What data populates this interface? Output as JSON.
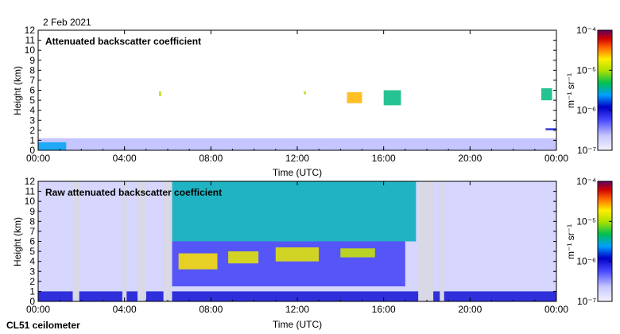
{
  "header": {
    "date": "2 Feb 2021"
  },
  "footer": {
    "instrument": "CL51 ceilometer"
  },
  "chart_data": [
    {
      "type": "heatmap",
      "title": "Attenuated backscatter coefficient",
      "xlabel": "Time (UTC)",
      "ylabel": "Height (km)",
      "x_ticks": [
        "00:00",
        "04:00",
        "08:00",
        "12:00",
        "16:00",
        "20:00",
        "00:00"
      ],
      "y_ticks": [
        "0",
        "1",
        "2",
        "3",
        "4",
        "5",
        "6",
        "7",
        "8",
        "9",
        "10",
        "11",
        "12"
      ],
      "xlim_hours": [
        0,
        24
      ],
      "ylim_km": [
        0,
        12
      ],
      "colorbar": {
        "label": "m⁻¹ sr⁻¹",
        "ticks": [
          "10⁻⁷",
          "10⁻⁶",
          "10⁻⁵",
          "10⁻⁴"
        ],
        "log_range": [
          -7,
          -4
        ]
      },
      "features": [
        {
          "name": "boundary layer",
          "t0": 0.0,
          "t1": 24.0,
          "h0": 0.0,
          "h1": 1.2,
          "level": -6.6
        },
        {
          "name": "surface layer",
          "t0": 0.0,
          "t1": 1.3,
          "h0": 0.0,
          "h1": 0.8,
          "level": -5.6
        },
        {
          "name": "cloud",
          "t0": 5.6,
          "t1": 5.7,
          "h0": 5.4,
          "h1": 5.9,
          "level": -5.0
        },
        {
          "name": "cloud",
          "t0": 12.3,
          "t1": 12.4,
          "h0": 5.6,
          "h1": 5.9,
          "level": -5.0
        },
        {
          "name": "cloud",
          "t0": 14.3,
          "t1": 15.0,
          "h0": 4.7,
          "h1": 5.8,
          "level": -4.6
        },
        {
          "name": "cloud",
          "t0": 16.0,
          "t1": 16.8,
          "h0": 4.5,
          "h1": 6.0,
          "level": -5.4
        },
        {
          "name": "cloud",
          "t0": 23.3,
          "t1": 23.8,
          "h0": 5.0,
          "h1": 6.2,
          "level": -5.4
        },
        {
          "name": "aerosol",
          "t0": 23.5,
          "t1": 24.0,
          "h0": 2.0,
          "h1": 2.2,
          "level": -6.0
        }
      ]
    },
    {
      "type": "heatmap",
      "title": "Raw attenuated backscatter coefficient",
      "xlabel": "Time (UTC)",
      "ylabel": "Height (km)",
      "x_ticks": [
        "00:00",
        "04:00",
        "08:00",
        "12:00",
        "16:00",
        "20:00",
        "00:00"
      ],
      "y_ticks": [
        "0",
        "1",
        "2",
        "3",
        "4",
        "5",
        "6",
        "7",
        "8",
        "9",
        "10",
        "11",
        "12"
      ],
      "xlim_hours": [
        0,
        24
      ],
      "ylim_km": [
        0,
        12
      ],
      "colorbar": {
        "label": "m⁻¹ sr⁻¹",
        "ticks": [
          "10⁻⁷",
          "10⁻⁶",
          "10⁻⁵",
          "10⁻⁴"
        ],
        "log_range": [
          -7,
          -4
        ]
      },
      "features": [
        {
          "name": "noise background",
          "t0": 0.0,
          "t1": 24.0,
          "h0": 0.0,
          "h1": 12.0,
          "level": -6.7
        },
        {
          "name": "daytime noise",
          "t0": 6.0,
          "t1": 17.5,
          "h0": 6.0,
          "h1": 12.0,
          "level": -5.5
        },
        {
          "name": "daytime noise",
          "t0": 6.2,
          "t1": 17.0,
          "h0": 1.5,
          "h1": 6.0,
          "level": -6.2
        },
        {
          "name": "cloud",
          "t0": 6.5,
          "t1": 8.3,
          "h0": 3.2,
          "h1": 4.8,
          "level": -4.7
        },
        {
          "name": "cloud",
          "t0": 8.8,
          "t1": 10.2,
          "h0": 3.8,
          "h1": 5.0,
          "level": -4.8
        },
        {
          "name": "cloud",
          "t0": 11.0,
          "t1": 13.0,
          "h0": 4.0,
          "h1": 5.4,
          "level": -4.8
        },
        {
          "name": "cloud",
          "t0": 14.0,
          "t1": 15.6,
          "h0": 4.4,
          "h1": 5.3,
          "level": -4.9
        },
        {
          "name": "boundary layer",
          "t0": 0.0,
          "t1": 24.0,
          "h0": 0.0,
          "h1": 1.0,
          "level": -6.0
        }
      ],
      "gaps": [
        {
          "t0": 1.6,
          "t1": 1.9
        },
        {
          "t0": 3.9,
          "t1": 4.1
        },
        {
          "t0": 4.6,
          "t1": 5.0
        },
        {
          "t0": 5.8,
          "t1": 6.2
        },
        {
          "t0": 17.6,
          "t1": 18.3
        },
        {
          "t0": 18.6,
          "t1": 18.8
        }
      ]
    }
  ]
}
